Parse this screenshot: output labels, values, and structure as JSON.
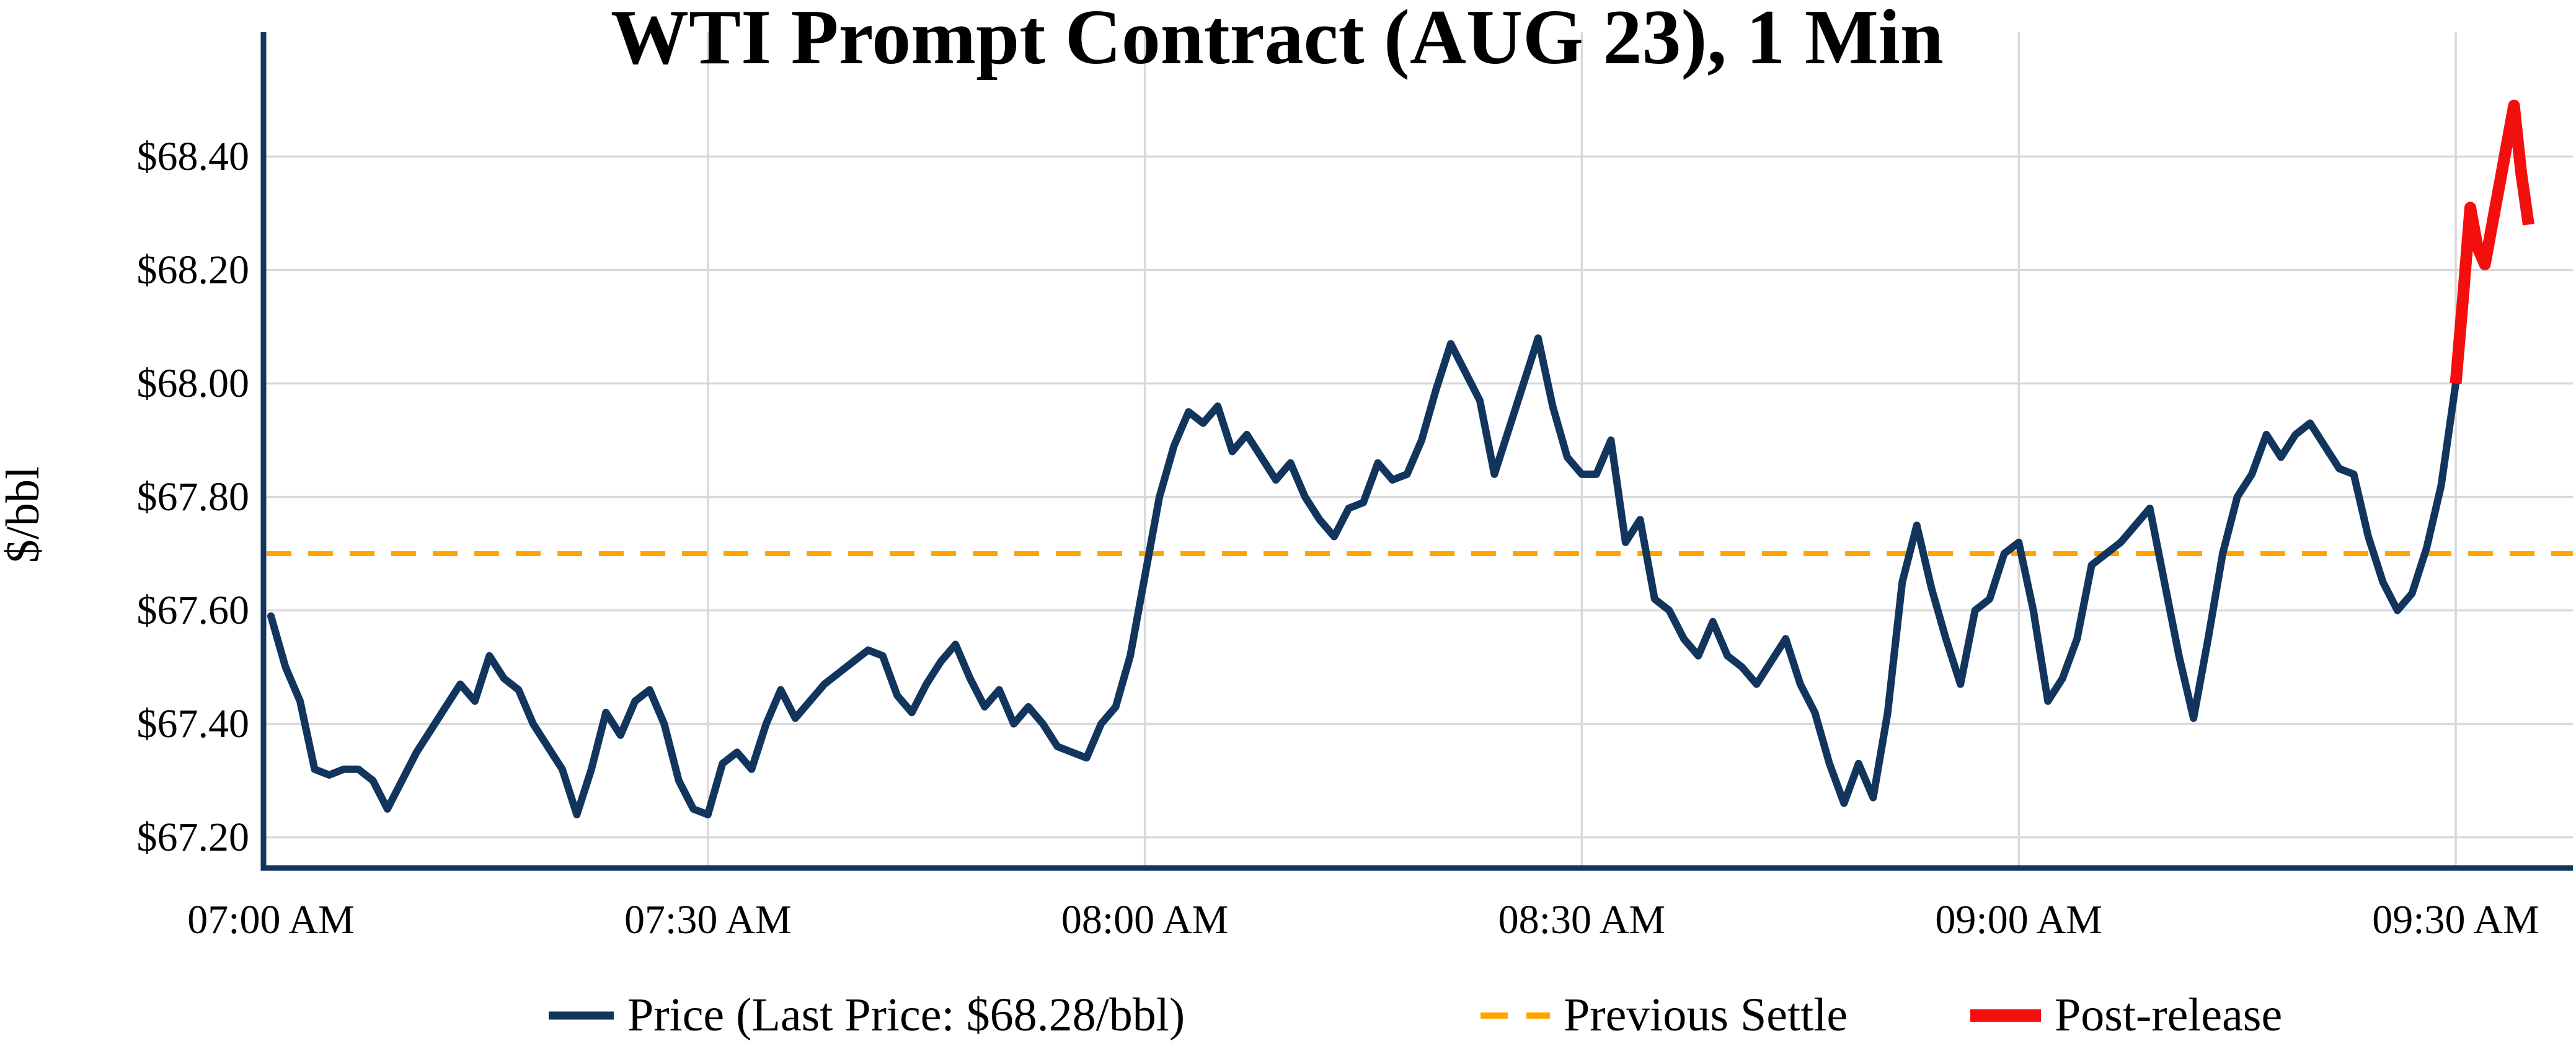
{
  "title": "WTI Prompt Contract (AUG 23), 1 Min",
  "y_axis": {
    "label": "$/bbl",
    "tick_labels": [
      "$67.20",
      "$67.40",
      "$67.60",
      "$67.80",
      "$68.00",
      "$68.20",
      "$68.40"
    ],
    "tick_values": [
      67.2,
      67.4,
      67.6,
      67.8,
      68.0,
      68.2,
      68.4
    ]
  },
  "x_axis": {
    "tick_labels": [
      "07:00 AM",
      "07:30 AM",
      "08:00 AM",
      "08:30 AM",
      "09:00 AM",
      "09:30 AM"
    ],
    "tick_minutes": [
      0,
      30,
      60,
      90,
      120,
      150
    ]
  },
  "legend": {
    "items": [
      {
        "label": "Price (Last Price: $68.28/bbl)",
        "color": "#12355e",
        "style": "solid"
      },
      {
        "label": "Previous Settle",
        "color": "#ffa500",
        "style": "dashed"
      },
      {
        "label": "Post-release",
        "color": "#f40f0f",
        "style": "thick-solid"
      }
    ]
  },
  "colors": {
    "price_line": "#12355e",
    "settle_line": "#ffa500",
    "post_release_line": "#f40f0f",
    "grid": "#d9d9d9",
    "text": "#000000"
  },
  "chart_data": {
    "type": "line",
    "title": "WTI Prompt Contract (AUG 23), 1 Min",
    "xlabel": "",
    "ylabel": "$/bbl",
    "x_unit": "minutes after 07:00 AM",
    "ylim": [
      67.08,
      68.56
    ],
    "xlim_minutes": [
      0,
      158
    ],
    "grid": true,
    "legend_position": "bottom-center",
    "previous_settle": 67.7,
    "last_price": 68.28,
    "last_price_label": "$68.28/bbl",
    "series": [
      {
        "name": "Price",
        "color": "#12355e",
        "points": [
          [
            0,
            67.59
          ],
          [
            1,
            67.5
          ],
          [
            2,
            67.44
          ],
          [
            3,
            67.32
          ],
          [
            4,
            67.31
          ],
          [
            5,
            67.32
          ],
          [
            6,
            67.32
          ],
          [
            7,
            67.3
          ],
          [
            8,
            67.25
          ],
          [
            9,
            67.3
          ],
          [
            10,
            67.35
          ],
          [
            11,
            67.39
          ],
          [
            12,
            67.43
          ],
          [
            13,
            67.47
          ],
          [
            14,
            67.44
          ],
          [
            15,
            67.52
          ],
          [
            16,
            67.48
          ],
          [
            17,
            67.46
          ],
          [
            18,
            67.4
          ],
          [
            19,
            67.36
          ],
          [
            20,
            67.32
          ],
          [
            21,
            67.24
          ],
          [
            22,
            67.32
          ],
          [
            23,
            67.42
          ],
          [
            24,
            67.38
          ],
          [
            25,
            67.44
          ],
          [
            26,
            67.46
          ],
          [
            27,
            67.4
          ],
          [
            28,
            67.3
          ],
          [
            29,
            67.25
          ],
          [
            30,
            67.24
          ],
          [
            31,
            67.33
          ],
          [
            32,
            67.35
          ],
          [
            33,
            67.32
          ],
          [
            34,
            67.4
          ],
          [
            35,
            67.46
          ],
          [
            36,
            67.41
          ],
          [
            37,
            67.44
          ],
          [
            38,
            67.47
          ],
          [
            39,
            67.49
          ],
          [
            40,
            67.51
          ],
          [
            41,
            67.53
          ],
          [
            42,
            67.52
          ],
          [
            43,
            67.45
          ],
          [
            44,
            67.42
          ],
          [
            45,
            67.47
          ],
          [
            46,
            67.51
          ],
          [
            47,
            67.54
          ],
          [
            48,
            67.48
          ],
          [
            49,
            67.43
          ],
          [
            50,
            67.46
          ],
          [
            51,
            67.4
          ],
          [
            52,
            67.43
          ],
          [
            53,
            67.4
          ],
          [
            54,
            67.36
          ],
          [
            55,
            67.35
          ],
          [
            56,
            67.34
          ],
          [
            57,
            67.4
          ],
          [
            58,
            67.43
          ],
          [
            59,
            67.52
          ],
          [
            60,
            67.66
          ],
          [
            61,
            67.8
          ],
          [
            62,
            67.89
          ],
          [
            63,
            67.95
          ],
          [
            64,
            67.93
          ],
          [
            65,
            67.96
          ],
          [
            66,
            67.88
          ],
          [
            67,
            67.91
          ],
          [
            68,
            67.87
          ],
          [
            69,
            67.83
          ],
          [
            70,
            67.86
          ],
          [
            71,
            67.8
          ],
          [
            72,
            67.76
          ],
          [
            73,
            67.73
          ],
          [
            74,
            67.78
          ],
          [
            75,
            67.79
          ],
          [
            76,
            67.86
          ],
          [
            77,
            67.83
          ],
          [
            78,
            67.84
          ],
          [
            79,
            67.9
          ],
          [
            80,
            67.99
          ],
          [
            81,
            68.07
          ],
          [
            82,
            68.02
          ],
          [
            83,
            67.97
          ],
          [
            84,
            67.84
          ],
          [
            85,
            67.92
          ],
          [
            86,
            68.0
          ],
          [
            87,
            68.08
          ],
          [
            88,
            67.96
          ],
          [
            89,
            67.87
          ],
          [
            90,
            67.84
          ],
          [
            91,
            67.84
          ],
          [
            92,
            67.9
          ],
          [
            93,
            67.72
          ],
          [
            94,
            67.76
          ],
          [
            95,
            67.62
          ],
          [
            96,
            67.6
          ],
          [
            97,
            67.55
          ],
          [
            98,
            67.52
          ],
          [
            99,
            67.58
          ],
          [
            100,
            67.52
          ],
          [
            101,
            67.5
          ],
          [
            102,
            67.47
          ],
          [
            103,
            67.51
          ],
          [
            104,
            67.55
          ],
          [
            105,
            67.47
          ],
          [
            106,
            67.42
          ],
          [
            107,
            67.33
          ],
          [
            108,
            67.26
          ],
          [
            109,
            67.33
          ],
          [
            110,
            67.27
          ],
          [
            111,
            67.42
          ],
          [
            112,
            67.65
          ],
          [
            113,
            67.75
          ],
          [
            114,
            67.64
          ],
          [
            115,
            67.55
          ],
          [
            116,
            67.47
          ],
          [
            117,
            67.6
          ],
          [
            118,
            67.62
          ],
          [
            119,
            67.7
          ],
          [
            120,
            67.72
          ],
          [
            121,
            67.6
          ],
          [
            122,
            67.44
          ],
          [
            123,
            67.48
          ],
          [
            124,
            67.55
          ],
          [
            125,
            67.68
          ],
          [
            126,
            67.7
          ],
          [
            127,
            67.72
          ],
          [
            128,
            67.75
          ],
          [
            129,
            67.78
          ],
          [
            130,
            67.65
          ],
          [
            131,
            67.52
          ],
          [
            132,
            67.41
          ],
          [
            133,
            67.55
          ],
          [
            134,
            67.7
          ],
          [
            135,
            67.8
          ],
          [
            136,
            67.84
          ],
          [
            137,
            67.91
          ],
          [
            138,
            67.87
          ],
          [
            139,
            67.91
          ],
          [
            140,
            67.93
          ],
          [
            141,
            67.89
          ],
          [
            142,
            67.85
          ],
          [
            143,
            67.84
          ],
          [
            144,
            67.73
          ],
          [
            145,
            67.65
          ],
          [
            146,
            67.6
          ],
          [
            147,
            67.63
          ],
          [
            148,
            67.71
          ],
          [
            149,
            67.82
          ],
          [
            150,
            68.0
          ]
        ]
      },
      {
        "name": "Post-release",
        "color": "#f40f0f",
        "points": [
          [
            150,
            68.0
          ],
          [
            150.5,
            68.15
          ],
          [
            151,
            68.31
          ],
          [
            151.5,
            68.24
          ],
          [
            152,
            68.21
          ],
          [
            153,
            68.35
          ],
          [
            154,
            68.49
          ],
          [
            154.5,
            68.37
          ],
          [
            155,
            68.28
          ]
        ]
      }
    ]
  }
}
